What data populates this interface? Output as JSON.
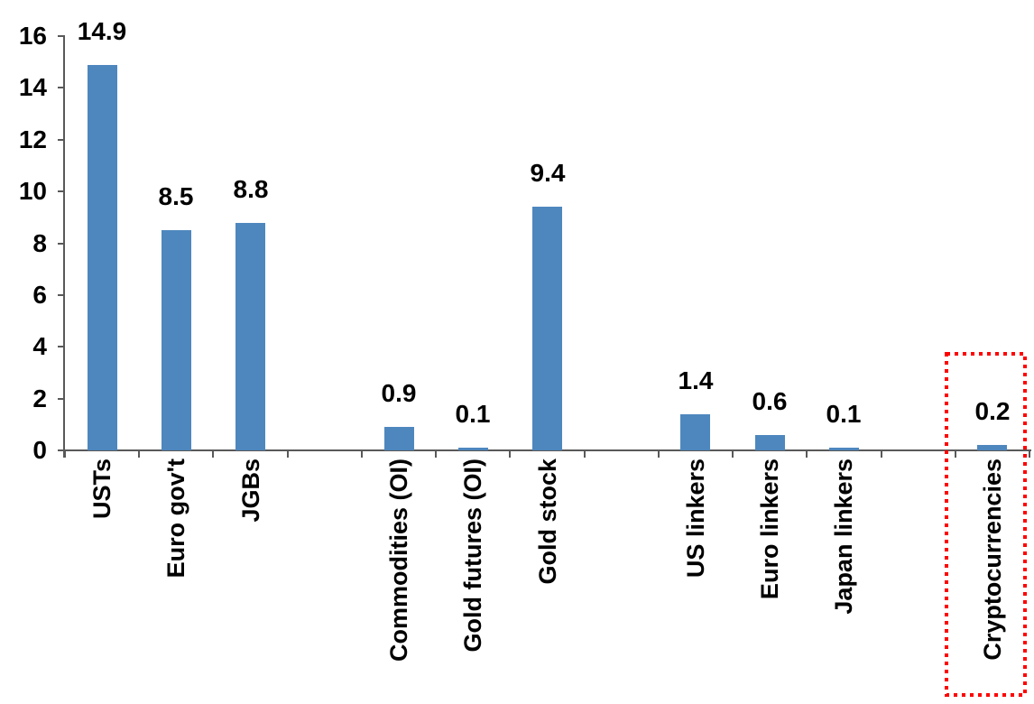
{
  "chart_data": {
    "type": "bar",
    "title": "",
    "xlabel": "",
    "ylabel": "",
    "categories": [
      "USTs",
      "Euro gov't",
      "JGBs",
      "",
      "Commodities (OI)",
      "Gold futures (OI)",
      "Gold stock",
      "",
      "US linkers",
      "Euro linkers",
      "Japan linkers",
      "",
      "Cryptocurrencies"
    ],
    "values": [
      14.9,
      8.5,
      8.8,
      null,
      0.9,
      0.1,
      9.4,
      null,
      1.4,
      0.6,
      0.1,
      null,
      0.2
    ],
    "data_labels": [
      "14.9",
      "8.5",
      "8.8",
      null,
      "0.9",
      "0.1",
      "9.4",
      null,
      "1.4",
      "0.6",
      "0.1",
      null,
      "0.2"
    ],
    "y_ticks": [
      0,
      2,
      4,
      6,
      8,
      10,
      12,
      14,
      16
    ],
    "ylim": [
      0,
      16
    ],
    "grid": false,
    "legend": false,
    "bar_color": "#4E87BE",
    "axis_color": "#595959",
    "text_color": "#000000",
    "annotation": {
      "type": "dotted-rectangle",
      "color": "#FF0000",
      "highlights_category": "Cryptocurrencies"
    }
  }
}
